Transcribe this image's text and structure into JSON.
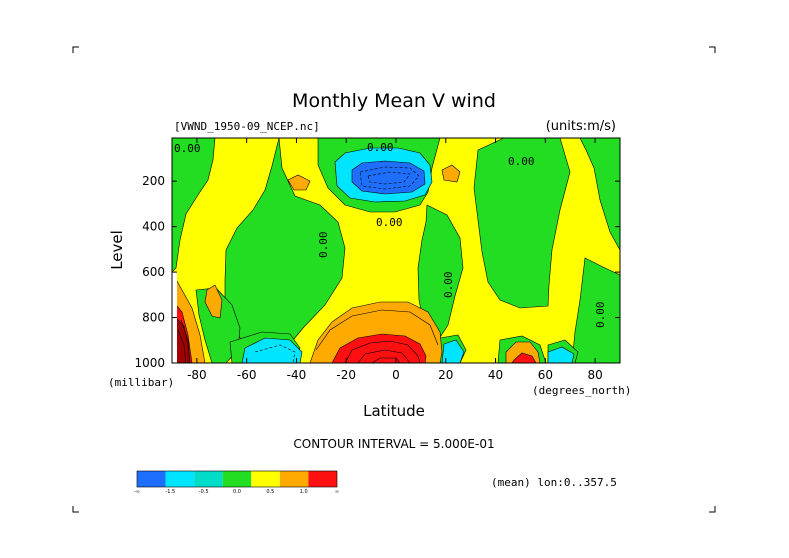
{
  "chart_data": {
    "type": "heatmap",
    "title": "Monthly Mean V wind",
    "dataset_label": "[VWND_1950-09_NCEP.nc]",
    "units_label": "(units:m/s)",
    "xlabel": "Latitude",
    "x_units": "(degrees_north)",
    "ylabel": "Level",
    "y_units": "(millibar)",
    "x_ticks": [
      "-80",
      "-60",
      "-40",
      "-20",
      "0",
      "20",
      "40",
      "60",
      "80"
    ],
    "x_tick_values": [
      -80,
      -60,
      -40,
      -20,
      0,
      20,
      40,
      60,
      80
    ],
    "y_ticks": [
      "200",
      "400",
      "600",
      "800",
      "1000"
    ],
    "y_tick_values": [
      200,
      400,
      600,
      800,
      1000
    ],
    "xlim": [
      -90,
      90
    ],
    "ylim": [
      1000,
      10
    ],
    "contour_interval_label": "CONTOUR INTERVAL = 5.000E-01",
    "mean_label": "(mean) lon:0..357.5",
    "contour_labels": [
      "0.00",
      "0.00",
      "0.00",
      "0.00",
      "0.00",
      "0.00",
      "0.00"
    ],
    "colorbar": {
      "colors": [
        "#1f6fff",
        "#00e5ff",
        "#00dcc8",
        "#22dd22",
        "#ffff00",
        "#ffaa00",
        "#ff1010"
      ],
      "tick_labels": [
        "-∞",
        "-1.5",
        "-0.5",
        "0.0",
        "0.5",
        "1.0",
        "∞"
      ]
    }
  }
}
